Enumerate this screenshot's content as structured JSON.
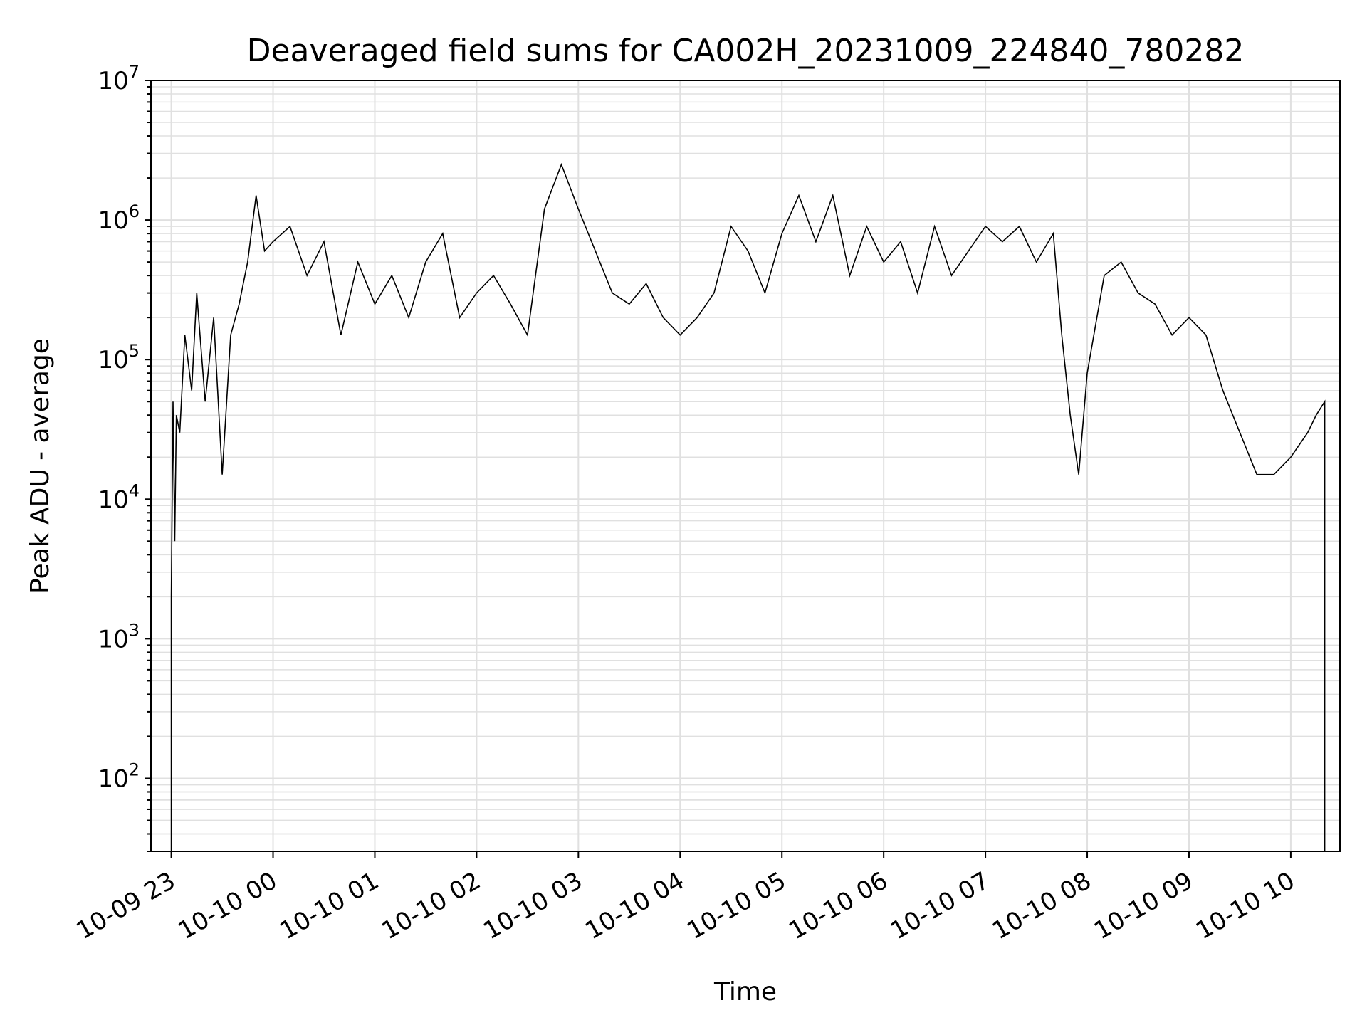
{
  "chart_data": {
    "type": "line",
    "title": "Deaveraged field sums for CA002H_20231009_224840_780282",
    "xlabel": "Time",
    "ylabel": "Peak ADU - average",
    "y_scale": "log",
    "ylim": [
      30,
      10000000
    ],
    "xlim": [
      "2023-10-09 22:48",
      "2023-10-10 10:29"
    ],
    "grid": true,
    "legend": "none",
    "line_color": "#000000",
    "grid_color": "#e0e0e0",
    "x_tick_labels": [
      "10-09 23",
      "10-10 00",
      "10-10 01",
      "10-10 02",
      "10-10 03",
      "10-10 04",
      "10-10 05",
      "10-10 06",
      "10-10 07",
      "10-10 08",
      "10-10 09",
      "10-10 10"
    ],
    "x_ticks": [
      "2023-10-09 23:00",
      "2023-10-10 00:00",
      "2023-10-10 01:00",
      "2023-10-10 02:00",
      "2023-10-10 03:00",
      "2023-10-10 04:00",
      "2023-10-10 05:00",
      "2023-10-10 06:00",
      "2023-10-10 07:00",
      "2023-10-10 08:00",
      "2023-10-10 09:00",
      "2023-10-10 10:00"
    ],
    "y_ticks": [
      {
        "value": 100,
        "base": "10",
        "exp": "2"
      },
      {
        "value": 1000,
        "base": "10",
        "exp": "3"
      },
      {
        "value": 10000,
        "base": "10",
        "exp": "4"
      },
      {
        "value": 100000,
        "base": "10",
        "exp": "5"
      },
      {
        "value": 1000000,
        "base": "10",
        "exp": "6"
      },
      {
        "value": 10000000,
        "base": "10",
        "exp": "7"
      }
    ],
    "series": [
      {
        "x": [
          "2023-10-09 23:00",
          "2023-10-09 23:00",
          "2023-10-09 23:00",
          "2023-10-09 23:01",
          "2023-10-09 23:02",
          "2023-10-09 23:03",
          "2023-10-09 23:05",
          "2023-10-09 23:08",
          "2023-10-09 23:12",
          "2023-10-09 23:15",
          "2023-10-09 23:20",
          "2023-10-09 23:25",
          "2023-10-09 23:30",
          "2023-10-09 23:35",
          "2023-10-09 23:40",
          "2023-10-09 23:45",
          "2023-10-09 23:50",
          "2023-10-09 23:55",
          "2023-10-10 00:00",
          "2023-10-10 00:10",
          "2023-10-10 00:20",
          "2023-10-10 00:30",
          "2023-10-10 00:40",
          "2023-10-10 00:50",
          "2023-10-10 01:00",
          "2023-10-10 01:10",
          "2023-10-10 01:20",
          "2023-10-10 01:30",
          "2023-10-10 01:40",
          "2023-10-10 01:50",
          "2023-10-10 02:00",
          "2023-10-10 02:10",
          "2023-10-10 02:20",
          "2023-10-10 02:30",
          "2023-10-10 02:40",
          "2023-10-10 02:50",
          "2023-10-10 03:00",
          "2023-10-10 03:10",
          "2023-10-10 03:20",
          "2023-10-10 03:30",
          "2023-10-10 03:40",
          "2023-10-10 03:50",
          "2023-10-10 04:00",
          "2023-10-10 04:10",
          "2023-10-10 04:20",
          "2023-10-10 04:30",
          "2023-10-10 04:40",
          "2023-10-10 04:50",
          "2023-10-10 05:00",
          "2023-10-10 05:10",
          "2023-10-10 05:20",
          "2023-10-10 05:30",
          "2023-10-10 05:40",
          "2023-10-10 05:50",
          "2023-10-10 06:00",
          "2023-10-10 06:10",
          "2023-10-10 06:20",
          "2023-10-10 06:30",
          "2023-10-10 06:40",
          "2023-10-10 06:50",
          "2023-10-10 07:00",
          "2023-10-10 07:10",
          "2023-10-10 07:20",
          "2023-10-10 07:30",
          "2023-10-10 07:40",
          "2023-10-10 07:45",
          "2023-10-10 07:50",
          "2023-10-10 07:55",
          "2023-10-10 08:00",
          "2023-10-10 08:10",
          "2023-10-10 08:20",
          "2023-10-10 08:30",
          "2023-10-10 08:40",
          "2023-10-10 08:50",
          "2023-10-10 09:00",
          "2023-10-10 09:10",
          "2023-10-10 09:20",
          "2023-10-10 09:30",
          "2023-10-10 09:40",
          "2023-10-10 09:50",
          "2023-10-10 10:00",
          "2023-10-10 10:10",
          "2023-10-10 10:15",
          "2023-10-10 10:20",
          "2023-10-10 10:20",
          "2023-10-10 10:20"
        ],
        "y": [
          30,
          350,
          2000,
          50000,
          5000,
          40000,
          30000,
          150000,
          60000,
          300000,
          50000,
          200000,
          15000,
          150000,
          250000,
          500000,
          1500000,
          600000,
          700000,
          900000,
          400000,
          700000,
          150000,
          500000,
          250000,
          400000,
          200000,
          500000,
          800000,
          200000,
          300000,
          400000,
          250000,
          150000,
          1200000,
          2500000,
          1200000,
          600000,
          300000,
          250000,
          350000,
          200000,
          150000,
          200000,
          300000,
          900000,
          600000,
          300000,
          800000,
          1500000,
          700000,
          1500000,
          400000,
          900000,
          500000,
          700000,
          300000,
          900000,
          400000,
          600000,
          900000,
          700000,
          900000,
          500000,
          800000,
          150000,
          40000,
          15000,
          80000,
          400000,
          500000,
          300000,
          250000,
          150000,
          200000,
          150000,
          60000,
          30000,
          15000,
          15000,
          20000,
          30000,
          40000,
          50000,
          500,
          30
        ]
      }
    ]
  }
}
